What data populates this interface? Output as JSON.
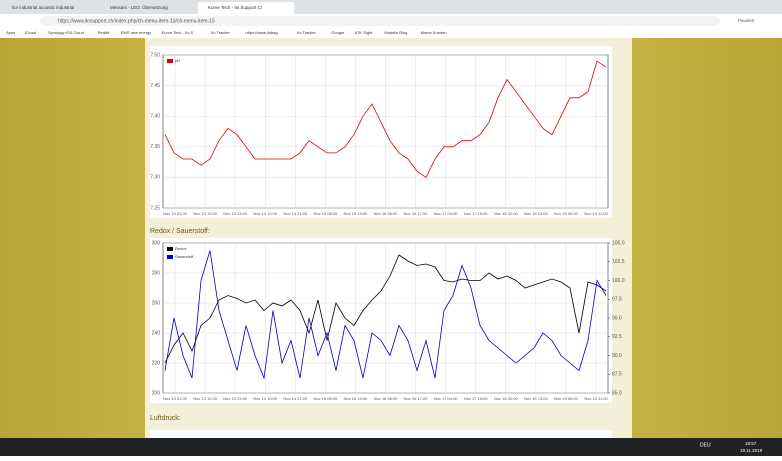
{
  "browser": {
    "tabs": [
      "Ilo! industrial acoustic industrial",
      "Messani - LEO. Übersetzung",
      "Kurve Tech - Ilo Support Cl"
    ],
    "url": "https://www.ilosupport.ch/index.php/ch-menu-item-13/ch-menu-item-15",
    "bookmarks": [
      "Apps",
      "iCloud",
      "Synology iOS Cloud",
      "Reddit",
      "EMS new energy",
      "Kurve Tech - Ilo S",
      "Ilo Tracker",
      "https://www.ilobag.",
      "Ilo Tracker",
      "Google",
      "ATK Sight",
      "Modells Blog",
      "Meine Kunden"
    ],
    "profile": "Pausiert"
  },
  "charts": [
    {
      "type": "line",
      "series": [
        {
          "name": "pH",
          "color": "#e00000",
          "values": [
            7.37,
            7.34,
            7.33,
            7.33,
            7.32,
            7.33,
            7.36,
            7.38,
            7.37,
            7.35,
            7.33,
            7.33,
            7.33,
            7.33,
            7.33,
            7.34,
            7.36,
            7.35,
            7.34,
            7.34,
            7.35,
            7.37,
            7.4,
            7.42,
            7.39,
            7.36,
            7.34,
            7.33,
            7.31,
            7.3,
            7.33,
            7.35,
            7.35,
            7.36,
            7.36,
            7.37,
            7.39,
            7.43,
            7.46,
            7.44,
            7.42,
            7.4,
            7.38,
            7.37,
            7.4,
            7.43,
            7.43,
            7.44,
            7.49,
            7.48
          ]
        }
      ],
      "ylim": [
        7.25,
        7.5
      ],
      "yticks": [
        {
          "value": 7.25,
          "label": "7.25"
        },
        {
          "value": 7.3,
          "label": "7.30"
        },
        {
          "value": 7.35,
          "label": "7.35"
        },
        {
          "value": 7.4,
          "label": "7.40"
        },
        {
          "value": 7.45,
          "label": "7.45"
        },
        {
          "value": 7.5,
          "label": "7.50"
        }
      ],
      "xlabels": [
        "Nov 13 01:00",
        "Nov 13 12:00",
        "Nov 13 23:00",
        "Nov 14 10:00",
        "Nov 14 21:00",
        "Nov 15 08:00",
        "Nov 15 19:00",
        "Nov 16 06:00",
        "Nov 16 17:00",
        "Nov 17 04:00",
        "Nov 17 15:00",
        "Nov 18 02:00",
        "Nov 18 13:00",
        "Nov 19 00:00",
        "Nov 19 11:00"
      ]
    },
    {
      "type": "line",
      "title": "Redox / Sauerstoff:",
      "series": [
        {
          "name": "Redox",
          "color": "#000000",
          "values": [
            220,
            232,
            240,
            228,
            245,
            250,
            262,
            265,
            263,
            260,
            262,
            255,
            260,
            258,
            262,
            255,
            240,
            262,
            235,
            260,
            250,
            245,
            255,
            262,
            268,
            278,
            292,
            288,
            285,
            286,
            284,
            275,
            274,
            276,
            275,
            275,
            280,
            276,
            278,
            275,
            270,
            272,
            274,
            276,
            274,
            270,
            240,
            274,
            272,
            268
          ]
        },
        {
          "name": "Sauerstoff",
          "color": "#0000c8",
          "axis": "y2",
          "values": [
            88,
            95,
            90,
            87,
            100,
            104,
            96,
            92,
            88,
            94,
            90,
            87,
            96,
            89,
            92,
            87,
            95,
            90,
            93,
            88,
            94,
            92,
            87,
            93,
            92,
            90,
            94,
            92,
            88,
            92,
            87,
            96,
            98,
            102,
            99,
            94,
            92,
            91,
            90,
            89,
            90,
            91,
            93,
            92,
            90,
            89,
            88,
            92,
            100,
            98
          ]
        }
      ],
      "ylim": [
        200,
        300
      ],
      "yticks": [
        200,
        220,
        240,
        260,
        280,
        300
      ],
      "y2lim": [
        85,
        105
      ],
      "y2ticks": [
        {
          "value": 85,
          "label": "85.0"
        },
        {
          "value": 87.5,
          "label": "87.5"
        },
        {
          "value": 90,
          "label": "90.0"
        },
        {
          "value": 92.5,
          "label": "92.5"
        },
        {
          "value": 95,
          "label": "95.0"
        },
        {
          "value": 97.5,
          "label": "97.5"
        },
        {
          "value": 100,
          "label": "100.0"
        },
        {
          "value": 102.5,
          "label": "102.5"
        },
        {
          "value": 105,
          "label": "105.0"
        }
      ],
      "xlabels": [
        "Nov 13 01:00",
        "Nov 13 12:00",
        "Nov 13 23:00",
        "Nov 14 10:00",
        "Nov 14 21:00",
        "Nov 15 08:00",
        "Nov 15 19:00",
        "Nov 16 06:00",
        "Nov 16 17:00",
        "Nov 17 04:00",
        "Nov 17 15:00",
        "Nov 18 02:00",
        "Nov 18 13:00",
        "Nov 19 00:00",
        "Nov 19 11:00"
      ]
    }
  ],
  "next_section": "Luftdruck:",
  "taskbar": {
    "time": "18:57",
    "date": "19.11.2019",
    "lang": "DEU"
  }
}
